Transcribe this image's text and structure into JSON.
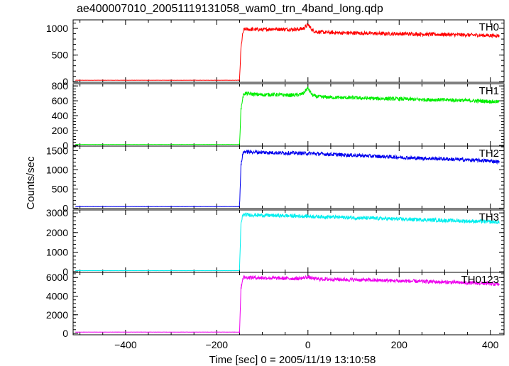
{
  "title": "ae400007010_20051119131058_wam0_trn_4band_long.qdp",
  "ylabel": "Counts/sec",
  "xlabel": "Time [sec] 0 = 2005/11/19 13:10:58",
  "chart_data": {
    "type": "line",
    "title": "ae400007010_20051119131058_wam0_trn_4band_long.qdp",
    "xlabel": "Time [sec] 0 = 2005/11/19 13:10:58",
    "ylabel": "Counts/sec",
    "xlim": [
      -515,
      430
    ],
    "x_ticks": [
      -400,
      -200,
      0,
      200,
      400
    ],
    "grid": false,
    "panels": [
      {
        "name": "TH0",
        "color": "#ff0000",
        "ylim": [
          -10,
          1160
        ],
        "y_ticks": [
          0,
          500,
          1000
        ],
        "x": [
          -510,
          -152,
          -150,
          -147,
          -143,
          -140,
          -120,
          -100,
          -80,
          -60,
          -40,
          -20,
          -10,
          -5,
          0,
          5,
          10,
          20,
          40,
          60,
          80,
          100,
          120,
          150,
          180,
          200,
          230,
          260,
          300,
          330,
          360,
          390,
          420
        ],
        "y": [
          28,
          28,
          30,
          620,
          900,
          985,
          980,
          975,
          990,
          985,
          980,
          985,
          1000,
          1030,
          1070,
          1020,
          960,
          935,
          925,
          920,
          915,
          915,
          910,
          905,
          900,
          900,
          895,
          890,
          885,
          880,
          875,
          870,
          862
        ]
      },
      {
        "name": "TH1",
        "color": "#00ee00",
        "ylim": [
          -10,
          830
        ],
        "y_ticks": [
          0,
          200,
          400,
          600,
          800
        ],
        "x": [
          -510,
          -152,
          -150,
          -147,
          -143,
          -140,
          -120,
          -100,
          -80,
          -60,
          -40,
          -20,
          -10,
          -5,
          0,
          5,
          10,
          20,
          40,
          60,
          80,
          100,
          120,
          150,
          180,
          200,
          230,
          260,
          300,
          330,
          360,
          390,
          420
        ],
        "y": [
          12,
          12,
          14,
          480,
          640,
          700,
          690,
          680,
          685,
          680,
          675,
          680,
          700,
          740,
          770,
          720,
          675,
          655,
          650,
          645,
          642,
          640,
          635,
          630,
          628,
          625,
          620,
          615,
          612,
          608,
          600,
          595,
          585
        ]
      },
      {
        "name": "TH2",
        "color": "#0000ee",
        "ylim": [
          -10,
          1620
        ],
        "y_ticks": [
          0,
          500,
          1000,
          1500
        ],
        "x": [
          -510,
          -152,
          -150,
          -147,
          -143,
          -140,
          -120,
          -100,
          -80,
          -60,
          -40,
          -20,
          0,
          20,
          40,
          60,
          80,
          100,
          120,
          150,
          180,
          200,
          230,
          260,
          300,
          330,
          360,
          390,
          420
        ],
        "y": [
          40,
          40,
          45,
          1100,
          1420,
          1475,
          1465,
          1455,
          1450,
          1445,
          1440,
          1435,
          1430,
          1420,
          1410,
          1400,
          1390,
          1380,
          1370,
          1355,
          1340,
          1330,
          1310,
          1300,
          1285,
          1270,
          1255,
          1240,
          1210
        ]
      },
      {
        "name": "TH3",
        "color": "#00eeee",
        "ylim": [
          -30,
          3150
        ],
        "y_ticks": [
          0,
          1000,
          2000,
          3000
        ],
        "x": [
          -510,
          -152,
          -150,
          -147,
          -143,
          -140,
          -120,
          -100,
          -80,
          -60,
          -40,
          -20,
          0,
          20,
          40,
          60,
          80,
          100,
          120,
          150,
          180,
          200,
          230,
          260,
          300,
          330,
          360,
          390,
          420
        ],
        "y": [
          60,
          60,
          70,
          2400,
          2880,
          2910,
          2895,
          2880,
          2870,
          2860,
          2850,
          2840,
          2830,
          2815,
          2800,
          2785,
          2770,
          2755,
          2740,
          2720,
          2700,
          2685,
          2665,
          2645,
          2620,
          2600,
          2575,
          2555,
          2520
        ]
      },
      {
        "name": "TH0123",
        "color": "#ee00ee",
        "ylim": [
          -150,
          6550
        ],
        "y_ticks": [
          0,
          2000,
          4000,
          6000
        ],
        "x": [
          -510,
          -152,
          -150,
          -147,
          -143,
          -140,
          -120,
          -100,
          -80,
          -60,
          -40,
          -20,
          -10,
          0,
          10,
          20,
          40,
          60,
          80,
          100,
          120,
          150,
          180,
          200,
          230,
          260,
          300,
          330,
          360,
          390,
          420
        ],
        "y": [
          140,
          140,
          160,
          4800,
          5900,
          6020,
          5990,
          5960,
          5940,
          5920,
          5900,
          5890,
          5950,
          6050,
          5900,
          5840,
          5820,
          5800,
          5780,
          5760,
          5740,
          5700,
          5660,
          5630,
          5600,
          5560,
          5500,
          5460,
          5410,
          5360,
          5250
        ]
      }
    ]
  }
}
